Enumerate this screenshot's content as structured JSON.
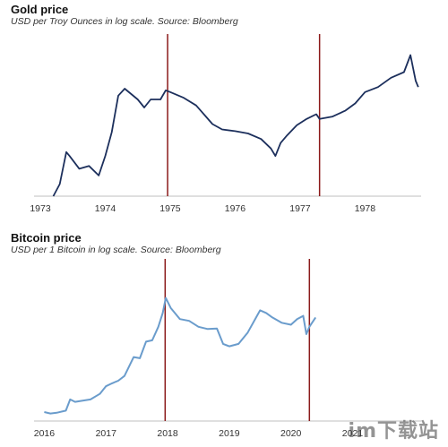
{
  "watermark": "im下载站",
  "chart_data": [
    {
      "type": "line",
      "title": "Gold price",
      "subtitle": "USD per Troy Ounces in log scale. Source: Bloomberg",
      "xlabel": "",
      "ylabel": "",
      "yscale": "log",
      "xlim": [
        1973.0,
        1978.85
      ],
      "ylim": [
        60,
        460
      ],
      "xticks": [
        "1973",
        "1974",
        "1975",
        "1976",
        "1977",
        "1978"
      ],
      "grid": false,
      "line_color": "#1c2f5c",
      "marker_color": "#8b1a1a",
      "markers_x": [
        1974.96,
        1977.3
      ],
      "series": [
        {
          "x": [
            1973.2,
            1973.3,
            1973.4,
            1973.45,
            1973.6,
            1973.75,
            1973.9,
            1974.0,
            1974.1,
            1974.2,
            1974.3,
            1974.5,
            1974.6,
            1974.7,
            1974.85,
            1974.93,
            1975.0,
            1975.2,
            1975.4,
            1975.55,
            1975.65,
            1975.8,
            1976.0,
            1976.2,
            1976.4,
            1976.55,
            1976.62,
            1976.7,
            1976.8,
            1976.95,
            1977.1,
            1977.25,
            1977.3,
            1977.5,
            1977.7,
            1977.85,
            1978.0,
            1978.2,
            1978.4,
            1978.6,
            1978.7,
            1978.78,
            1978.82
          ],
          "y": [
            60,
            70,
            105,
            100,
            85,
            88,
            78,
            100,
            135,
            215,
            235,
            205,
            185,
            205,
            205,
            230,
            225,
            210,
            190,
            165,
            150,
            140,
            137,
            133,
            124,
            110,
            100,
            118,
            130,
            148,
            160,
            170,
            160,
            165,
            178,
            195,
            225,
            240,
            270,
            290,
            360,
            260,
            240
          ]
        }
      ]
    },
    {
      "type": "line",
      "title": "Bitcoin price",
      "subtitle": "USD per 1 Bitcoin in log scale. Source: Bloomberg",
      "xlabel": "",
      "ylabel": "",
      "yscale": "log",
      "xlim": [
        2015.95,
        2021.4
      ],
      "ylim": [
        350,
        20000
      ],
      "xticks": [
        "2016",
        "2017",
        "2018",
        "2019",
        "2020",
        "2021"
      ],
      "grid": false,
      "line_color": "#6a9ccc",
      "marker_color": "#8b1a1a",
      "markers_x": [
        2017.96,
        2020.3
      ],
      "series": [
        {
          "x": [
            2016.0,
            2016.1,
            2016.2,
            2016.35,
            2016.42,
            2016.5,
            2016.6,
            2016.75,
            2016.9,
            2017.0,
            2017.1,
            2017.2,
            2017.3,
            2017.45,
            2017.55,
            2017.65,
            2017.75,
            2017.85,
            2017.92,
            2017.97,
            2018.05,
            2018.2,
            2018.35,
            2018.5,
            2018.65,
            2018.8,
            2018.9,
            2019.0,
            2019.15,
            2019.3,
            2019.45,
            2019.5,
            2019.6,
            2019.7,
            2019.85,
            2020.0,
            2020.1,
            2020.2,
            2020.25,
            2020.3,
            2020.4
          ],
          "y": [
            430,
            410,
            420,
            450,
            650,
            600,
            620,
            650,
            780,
            1000,
            1100,
            1200,
            1400,
            2600,
            2500,
            4300,
            4500,
            7000,
            11000,
            18000,
            13000,
            9000,
            8500,
            7000,
            6500,
            6600,
            4000,
            3700,
            4000,
            5800,
            10000,
            12000,
            11000,
            9500,
            8000,
            7500,
            9000,
            10000,
            5500,
            7000,
            9500
          ]
        }
      ]
    }
  ]
}
